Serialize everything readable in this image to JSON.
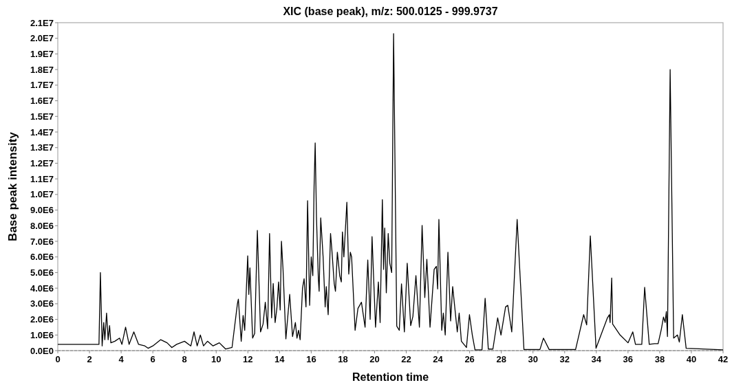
{
  "chart_data": {
    "type": "line",
    "title": "XIC (base peak), m/z: 500.0125 - 999.9737",
    "xlabel": "Retention time",
    "ylabel": "Base peak intensity",
    "x": [
      0,
      2.6,
      2.69,
      2.8,
      2.9,
      2.97,
      3.08,
      3.18,
      3.27,
      3.35,
      3.6,
      3.9,
      4.05,
      4.28,
      4.5,
      4.8,
      5.1,
      5.5,
      5.7,
      6.0,
      6.5,
      6.9,
      7.2,
      7.5,
      8.0,
      8.4,
      8.6,
      8.8,
      9.0,
      9.2,
      9.45,
      9.8,
      10.2,
      10.4,
      10.6,
      11.0,
      11.34,
      11.4,
      11.58,
      11.7,
      11.8,
      11.99,
      12.06,
      12.13,
      12.3,
      12.43,
      12.6,
      12.8,
      12.96,
      13.1,
      13.25,
      13.37,
      13.5,
      13.6,
      13.72,
      13.83,
      13.94,
      14.04,
      14.12,
      14.22,
      14.4,
      14.64,
      14.82,
      15.0,
      15.1,
      15.2,
      15.3,
      15.45,
      15.55,
      15.67,
      15.77,
      15.9,
      16.0,
      16.1,
      16.18,
      16.25,
      16.33,
      16.45,
      16.5,
      16.6,
      16.75,
      16.88,
      16.95,
      17.07,
      17.22,
      17.3,
      17.45,
      17.53,
      17.65,
      17.8,
      17.9,
      17.97,
      18.06,
      18.16,
      18.25,
      18.37,
      18.47,
      18.55,
      18.77,
      18.95,
      19.17,
      19.4,
      19.57,
      19.72,
      19.84,
      20.06,
      20.24,
      20.35,
      20.49,
      20.57,
      20.64,
      20.74,
      20.86,
      20.96,
      21.08,
      21.2,
      21.4,
      21.56,
      21.7,
      21.88,
      22.06,
      22.28,
      22.42,
      22.61,
      22.83,
      23.0,
      23.17,
      23.3,
      23.5,
      23.76,
      23.9,
      23.98,
      24.06,
      24.24,
      24.34,
      24.46,
      24.63,
      24.8,
      24.93,
      25.22,
      25.34,
      25.48,
      25.8,
      25.99,
      26.17,
      26.34,
      26.78,
      26.98,
      27.18,
      27.47,
      27.77,
      27.98,
      28.27,
      28.41,
      28.66,
      29.0,
      29.43,
      30.44,
      30.66,
      31.02,
      32.69,
      33.2,
      33.39,
      33.62,
      33.98,
      34.7,
      34.82,
      34.87,
      34.97,
      35.03,
      35.5,
      36.0,
      36.3,
      36.47,
      36.87,
      37.05,
      37.34,
      37.67,
      37.9,
      38.1,
      38.24,
      38.34,
      38.42,
      38.49,
      38.66,
      38.88,
      39.12,
      39.24,
      39.43,
      39.67,
      42
    ],
    "series": [
      {
        "color": "#000000",
        "values": [
          400000,
          400000,
          5000000,
          300000,
          1800000,
          700000,
          2400000,
          700000,
          1600000,
          500000,
          600000,
          800000,
          400000,
          1500000,
          400000,
          1200000,
          400000,
          300000,
          150000,
          300000,
          700000,
          500000,
          200000,
          400000,
          600000,
          300000,
          1200000,
          300000,
          1000000,
          300000,
          600000,
          300000,
          500000,
          300000,
          100000,
          200000,
          3000000,
          3300000,
          600000,
          2250000,
          1300000,
          6070000,
          3600000,
          5300000,
          800000,
          1100000,
          7700000,
          1200000,
          1700000,
          3100000,
          1400000,
          7500000,
          2100000,
          4300000,
          1800000,
          2700000,
          4400000,
          2600000,
          7000000,
          5200000,
          750000,
          3600000,
          900000,
          1800000,
          800000,
          1300000,
          700000,
          4000000,
          4600000,
          2800000,
          9600000,
          2900000,
          6000000,
          4800000,
          10500000,
          13300000,
          8600000,
          4600000,
          3800000,
          8500000,
          6000000,
          2800000,
          4100000,
          2300000,
          7500000,
          6500000,
          4300000,
          3800000,
          6300000,
          4800000,
          4400000,
          7600000,
          6000000,
          7800000,
          9500000,
          4900000,
          6300000,
          6000000,
          1300000,
          2700000,
          3100000,
          1500000,
          5800000,
          2000000,
          7300000,
          1500000,
          4400000,
          1800000,
          9670000,
          5200000,
          7850000,
          3700000,
          7500000,
          5600000,
          5000000,
          20300000,
          1570000,
          1300000,
          4270000,
          1200000,
          5600000,
          1600000,
          2200000,
          4800000,
          1500000,
          8020000,
          3400000,
          5850000,
          1500000,
          5200000,
          5400000,
          3950000,
          8400000,
          1300000,
          2400000,
          1000000,
          6300000,
          1900000,
          4100000,
          1200000,
          2400000,
          600000,
          200000,
          2300000,
          1000000,
          50000,
          50000,
          3350000,
          100000,
          100000,
          2100000,
          1000000,
          2800000,
          2900000,
          1200000,
          8400000,
          70000,
          70000,
          800000,
          70000,
          70000,
          2300000,
          1650000,
          7350000,
          150000,
          2100000,
          2300000,
          1800000,
          4650000,
          1700000,
          1000000,
          500000,
          1200000,
          400000,
          400000,
          4050000,
          400000,
          450000,
          450000,
          1350000,
          2150000,
          1800000,
          2500000,
          900000,
          18000000,
          800000,
          1000000,
          550000,
          2300000,
          150000,
          50000
        ]
      }
    ],
    "xlim": [
      0,
      42
    ],
    "xticks": [
      0,
      2,
      4,
      6,
      8,
      10,
      12,
      14,
      16,
      18,
      20,
      22,
      24,
      26,
      28,
      30,
      32,
      34,
      36,
      38,
      40,
      42
    ],
    "ylim": [
      0,
      21000000
    ],
    "yticks": [
      {
        "value": 0,
        "label": "0.0E0"
      },
      {
        "value": 1000000,
        "label": "1.0E6"
      },
      {
        "value": 2000000,
        "label": "2.0E6"
      },
      {
        "value": 3000000,
        "label": "3.0E6"
      },
      {
        "value": 4000000,
        "label": "4.0E6"
      },
      {
        "value": 5000000,
        "label": "5.0E6"
      },
      {
        "value": 6000000,
        "label": "6.0E6"
      },
      {
        "value": 7000000,
        "label": "7.0E6"
      },
      {
        "value": 8000000,
        "label": "8.0E6"
      },
      {
        "value": 9000000,
        "label": "9.0E6"
      },
      {
        "value": 10000000,
        "label": "1.0E7"
      },
      {
        "value": 11000000,
        "label": "1.1E7"
      },
      {
        "value": 12000000,
        "label": "1.2E7"
      },
      {
        "value": 13000000,
        "label": "1.3E7"
      },
      {
        "value": 14000000,
        "label": "1.4E7"
      },
      {
        "value": 15000000,
        "label": "1.5E7"
      },
      {
        "value": 16000000,
        "label": "1.6E7"
      },
      {
        "value": 17000000,
        "label": "1.7E7"
      },
      {
        "value": 18000000,
        "label": "1.8E7"
      },
      {
        "value": 19000000,
        "label": "1.9E7"
      },
      {
        "value": 20000000,
        "label": "2.0E7"
      },
      {
        "value": 21000000,
        "label": "2.1E7"
      }
    ]
  }
}
